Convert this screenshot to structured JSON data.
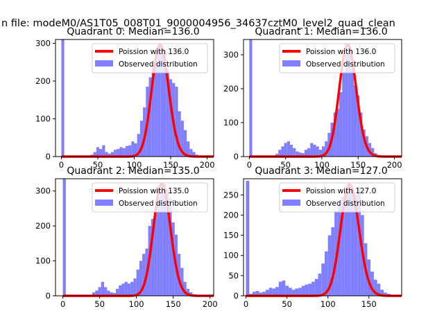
{
  "suptitle": "n file: modeM0/AS1T05_008T01_9000004956_34637cztM0_level2_quad_clean",
  "colors": {
    "hist": "#8080ff",
    "fit": "#ff0000",
    "axis": "#000000",
    "legend_border": "#cccccc"
  },
  "chart_data": [
    {
      "type": "bar",
      "title": "Quadrant 0: Median=136.0",
      "xlim": [
        -8,
        209
      ],
      "ylim": [
        0,
        310
      ],
      "xticks": [
        0,
        50,
        100,
        150,
        200
      ],
      "yticks": [
        0,
        100,
        200,
        300
      ],
      "bin_width": 4,
      "bin_starts": [
        0,
        4,
        8,
        12,
        16,
        20,
        24,
        28,
        32,
        36,
        40,
        44,
        48,
        52,
        56,
        60,
        64,
        68,
        72,
        76,
        80,
        84,
        88,
        92,
        96,
        100,
        104,
        108,
        112,
        116,
        120,
        124,
        128,
        132,
        136,
        140,
        144,
        148,
        152,
        156,
        160,
        164,
        168,
        172,
        176,
        180,
        184,
        188,
        192,
        196
      ],
      "counts": [
        310,
        0,
        0,
        0,
        0,
        0,
        0,
        0,
        0,
        2,
        5,
        12,
        25,
        20,
        30,
        12,
        8,
        12,
        18,
        20,
        25,
        22,
        28,
        30,
        40,
        35,
        60,
        95,
        130,
        185,
        210,
        240,
        255,
        290,
        285,
        275,
        230,
        205,
        195,
        185,
        120,
        95,
        70,
        40,
        20,
        12,
        5,
        3,
        2,
        0
      ],
      "poisson_mean": 136.0,
      "poisson_peak": 295,
      "legend": [
        "Poission with 136.0",
        "Observed distribution"
      ]
    },
    {
      "type": "bar",
      "title": "Quadrant 1: Median=136.0",
      "xlim": [
        -8,
        210
      ],
      "ylim": [
        0,
        345
      ],
      "xticks": [
        0,
        50,
        100,
        150,
        200
      ],
      "yticks": [
        0,
        100,
        200,
        300
      ],
      "bin_width": 4,
      "bin_starts": [
        0,
        4,
        8,
        12,
        16,
        20,
        24,
        28,
        32,
        36,
        40,
        44,
        48,
        52,
        56,
        60,
        64,
        68,
        72,
        76,
        80,
        84,
        88,
        92,
        96,
        100,
        104,
        108,
        112,
        116,
        120,
        124,
        128,
        132,
        136,
        140,
        144,
        148,
        152,
        156,
        160,
        164,
        168,
        172,
        176,
        180,
        184,
        188,
        192,
        196,
        200
      ],
      "counts": [
        345,
        0,
        0,
        0,
        0,
        0,
        0,
        0,
        2,
        8,
        20,
        30,
        40,
        45,
        35,
        25,
        15,
        12,
        10,
        20,
        25,
        40,
        35,
        30,
        20,
        30,
        45,
        70,
        100,
        130,
        140,
        190,
        250,
        300,
        320,
        260,
        210,
        180,
        130,
        80,
        60,
        40,
        25,
        10,
        5,
        2,
        1,
        0,
        0,
        0,
        0
      ],
      "poisson_mean": 136.0,
      "poisson_peak": 330,
      "legend": [
        "Poission with 136.0",
        "Observed distribution"
      ]
    },
    {
      "type": "bar",
      "title": "Quadrant 2: Median=135.0",
      "xlim": [
        -10,
        205
      ],
      "ylim": [
        0,
        335
      ],
      "xticks": [
        0,
        50,
        100,
        150,
        200
      ],
      "yticks": [
        0,
        100,
        200,
        300
      ],
      "bin_width": 4,
      "bin_starts": [
        0,
        4,
        8,
        12,
        16,
        20,
        24,
        28,
        32,
        36,
        40,
        44,
        48,
        52,
        56,
        60,
        64,
        68,
        72,
        76,
        80,
        84,
        88,
        92,
        96,
        100,
        104,
        108,
        112,
        116,
        120,
        124,
        128,
        132,
        136,
        140,
        144,
        148,
        152,
        156,
        160,
        164,
        168,
        172,
        176,
        180,
        184,
        188,
        192,
        196
      ],
      "counts": [
        335,
        0,
        0,
        0,
        0,
        0,
        0,
        0,
        0,
        2,
        10,
        15,
        25,
        40,
        25,
        15,
        10,
        8,
        20,
        30,
        35,
        40,
        35,
        40,
        50,
        75,
        100,
        120,
        135,
        200,
        220,
        245,
        280,
        300,
        320,
        305,
        280,
        210,
        175,
        120,
        80,
        40,
        20,
        10,
        5,
        2,
        1,
        0,
        0,
        0
      ],
      "poisson_mean": 135.0,
      "poisson_peak": 320,
      "legend": [
        "Poission with 135.0",
        "Observed distribution"
      ]
    },
    {
      "type": "bar",
      "title": "Quadrant 3: Median=127.0",
      "xlim": [
        -3,
        190
      ],
      "ylim": [
        0,
        290
      ],
      "xticks": [
        0,
        50,
        100,
        150
      ],
      "yticks": [
        0,
        50,
        100,
        150,
        200,
        250
      ],
      "bin_width": 4,
      "bin_starts": [
        0,
        4,
        8,
        12,
        16,
        20,
        24,
        28,
        32,
        36,
        40,
        44,
        48,
        52,
        56,
        60,
        64,
        68,
        72,
        76,
        80,
        84,
        88,
        92,
        96,
        100,
        104,
        108,
        112,
        116,
        120,
        124,
        128,
        132,
        136,
        140,
        144,
        148,
        152,
        156,
        160,
        164,
        168,
        172,
        176,
        180
      ],
      "counts": [
        285,
        5,
        10,
        12,
        8,
        10,
        15,
        20,
        18,
        22,
        35,
        38,
        25,
        20,
        15,
        18,
        20,
        25,
        28,
        30,
        35,
        42,
        55,
        80,
        110,
        150,
        170,
        210,
        225,
        245,
        260,
        280,
        265,
        250,
        270,
        200,
        130,
        90,
        60,
        40,
        30,
        15,
        8,
        5,
        2,
        0
      ],
      "poisson_mean": 127.0,
      "poisson_peak": 275,
      "legend": [
        "Poission with 127.0",
        "Observed distribution"
      ]
    }
  ]
}
